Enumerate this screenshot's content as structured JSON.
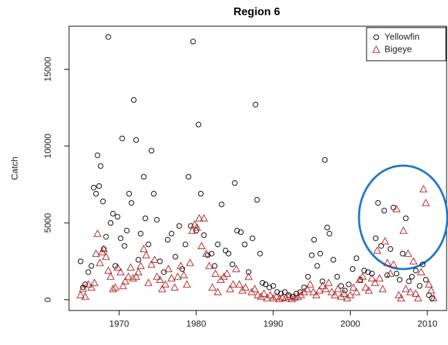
{
  "chart_data": {
    "type": "scatter",
    "title": "Region 6",
    "y_label": "Catch",
    "xlim": [
      1963.5,
      2012.5
    ],
    "ylim": [
      -700,
      17800
    ],
    "xticks": [
      1970,
      1980,
      1990,
      2000,
      2010
    ],
    "yticks": [
      0,
      5000,
      10000,
      15000
    ],
    "legend": "topright",
    "series": [
      {
        "name": "Yellowfin",
        "color": "#000000",
        "marker": "circle",
        "x": [
          1965.0,
          1965.3,
          1965.6,
          1966.0,
          1966.4,
          1966.7,
          1967.0,
          1967.2,
          1967.4,
          1967.6,
          1967.9,
          1968.0,
          1968.3,
          1968.6,
          1968.9,
          1969.2,
          1969.5,
          1969.8,
          1970.2,
          1970.4,
          1970.7,
          1971.0,
          1971.3,
          1971.6,
          1971.9,
          1972.2,
          1972.5,
          1972.8,
          1973.2,
          1973.4,
          1973.8,
          1974.2,
          1974.5,
          1974.9,
          1975.3,
          1975.8,
          1976.3,
          1976.8,
          1977.3,
          1977.8,
          1978.2,
          1978.6,
          1979.0,
          1979.3,
          1979.6,
          1980.0,
          1980.3,
          1980.6,
          1981.0,
          1981.5,
          1982.0,
          1982.4,
          1982.8,
          1983.3,
          1983.8,
          1984.2,
          1984.7,
          1985.0,
          1985.3,
          1985.8,
          1986.3,
          1986.8,
          1987.3,
          1987.7,
          1987.9,
          1988.3,
          1988.6,
          1989.0,
          1989.5,
          1990.0,
          1990.5,
          1991.0,
          1991.5,
          1992.0,
          1992.5,
          1993.0,
          1993.5,
          1994.0,
          1994.5,
          1995.0,
          1995.3,
          1995.7,
          1996.1,
          1996.4,
          1996.7,
          1997.0,
          1997.3,
          1997.8,
          1998.3,
          1998.8,
          1999.3,
          1999.8,
          2000.3,
          2000.8,
          2001.3,
          2001.8,
          2002.3,
          2002.8,
          2003.3,
          2003.6,
          2004.0,
          2004.4,
          2004.8,
          2005.2,
          2005.6,
          2006.0,
          2006.4,
          2006.8,
          2007.2,
          2007.6,
          2008.0,
          2008.5,
          2009.0,
          2009.4,
          2009.8,
          2010.2,
          2010.6
        ],
        "values": [
          2500,
          800,
          1000,
          1800,
          2200,
          7300,
          6900,
          9400,
          7400,
          8700,
          6400,
          3300,
          4100,
          17100,
          5000,
          5600,
          2200,
          5400,
          4000,
          10500,
          3500,
          4500,
          6900,
          6300,
          13000,
          10400,
          2600,
          4300,
          8000,
          5300,
          3600,
          9700,
          6900,
          5200,
          2500,
          1800,
          3900,
          4300,
          2800,
          4800,
          2000,
          3600,
          8000,
          4800,
          16800,
          4500,
          11400,
          6900,
          4200,
          2900,
          3000,
          2200,
          3600,
          6200,
          3200,
          3000,
          2300,
          7600,
          4500,
          4400,
          3600,
          1800,
          4000,
          12700,
          6500,
          3000,
          1100,
          1000,
          800,
          900,
          500,
          400,
          500,
          300,
          200,
          400,
          500,
          800,
          1500,
          2900,
          3900,
          2200,
          3000,
          1200,
          9100,
          4700,
          4300,
          2600,
          1500,
          900,
          600,
          1000,
          2000,
          2700,
          1300,
          1900,
          1800,
          1700,
          4000,
          6300,
          3500,
          5800,
          1600,
          3300,
          6000,
          1700,
          1300,
          3000,
          5300,
          1200,
          1500,
          1900,
          900,
          2300,
          1300,
          300,
          100
        ]
      },
      {
        "name": "Bigeye",
        "color": "#b22222",
        "marker": "triangle",
        "x": [
          1965.0,
          1965.3,
          1965.6,
          1966.0,
          1966.4,
          1966.8,
          1967.0,
          1967.2,
          1967.5,
          1967.8,
          1968.0,
          1968.3,
          1968.6,
          1968.9,
          1969.2,
          1969.5,
          1969.8,
          1970.2,
          1970.5,
          1970.8,
          1971.2,
          1971.5,
          1971.8,
          1972.2,
          1972.5,
          1972.8,
          1973.2,
          1973.5,
          1973.8,
          1974.2,
          1974.6,
          1974.9,
          1975.3,
          1975.6,
          1976.0,
          1976.4,
          1976.8,
          1977.2,
          1977.6,
          1978.0,
          1978.4,
          1978.8,
          1979.2,
          1979.5,
          1979.8,
          1980.1,
          1980.4,
          1980.7,
          1981.0,
          1981.3,
          1981.7,
          1982.1,
          1982.5,
          1982.8,
          1983.2,
          1983.6,
          1984.0,
          1984.4,
          1984.8,
          1985.2,
          1985.6,
          1986.0,
          1986.4,
          1986.8,
          1987.2,
          1987.6,
          1988.0,
          1988.4,
          1988.8,
          1989.2,
          1989.6,
          1990.0,
          1990.4,
          1990.8,
          1991.2,
          1991.6,
          1992.0,
          1992.4,
          1992.8,
          1993.2,
          1993.6,
          1994.0,
          1994.4,
          1994.8,
          1995.2,
          1995.6,
          1996.0,
          1996.4,
          1996.8,
          1997.2,
          1997.6,
          1998.0,
          1998.4,
          1998.8,
          1999.2,
          1999.6,
          2000.0,
          2000.4,
          2000.8,
          2001.2,
          2001.6,
          2002.0,
          2002.4,
          2002.8,
          2003.2,
          2003.5,
          2003.8,
          2004.2,
          2004.5,
          2004.8,
          2005.2,
          2005.6,
          2006.0,
          2006.3,
          2006.6,
          2006.9,
          2007.2,
          2007.5,
          2007.8,
          2008.2,
          2008.5,
          2008.8,
          2009.2,
          2009.5,
          2009.8,
          2010.2,
          2010.5,
          2010.8
        ],
        "values": [
          300,
          700,
          200,
          1000,
          800,
          1100,
          3000,
          4300,
          2400,
          3100,
          3300,
          2800,
          1900,
          1500,
          700,
          800,
          2100,
          1800,
          900,
          1200,
          1500,
          2100,
          1400,
          1500,
          1800,
          2200,
          3300,
          2900,
          1100,
          2300,
          2600,
          1500,
          1300,
          700,
          1000,
          2000,
          1400,
          800,
          1500,
          2200,
          1600,
          1000,
          2400,
          4500,
          4900,
          4700,
          5300,
          3500,
          5300,
          3000,
          2200,
          800,
          1700,
          500,
          1300,
          1500,
          1700,
          700,
          1000,
          2000,
          1000,
          600,
          800,
          1500,
          500,
          700,
          300,
          200,
          400,
          100,
          300,
          100,
          200,
          50,
          150,
          100,
          200,
          50,
          150,
          200,
          300,
          500,
          700,
          1000,
          500,
          300,
          600,
          900,
          700,
          1100,
          500,
          300,
          700,
          200,
          400,
          100,
          300,
          800,
          500,
          1300,
          1500,
          800,
          600,
          1400,
          1100,
          3200,
          1400,
          700,
          3800,
          2400,
          1700,
          2300,
          5900,
          300,
          100,
          4500,
          700,
          3000,
          500,
          2500,
          400,
          100,
          1800,
          7200,
          6300,
          1000,
          600,
          100
        ]
      }
    ]
  }
}
